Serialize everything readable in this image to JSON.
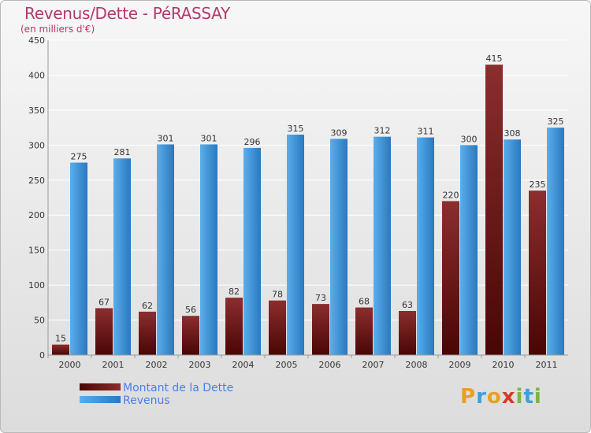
{
  "title": "Revenus/Dette - PéRASSAY",
  "subtitle": "(en milliers d'€)",
  "brand": {
    "letters": [
      {
        "ch": "P",
        "color": "#e8a020"
      },
      {
        "ch": "r",
        "color": "#3da0d8"
      },
      {
        "ch": "o",
        "color": "#e8a020"
      },
      {
        "ch": "x",
        "color": "#d63a2a"
      },
      {
        "ch": "i",
        "color": "#7ab640"
      },
      {
        "ch": "t",
        "color": "#3da0d8"
      },
      {
        "ch": "i",
        "color": "#7ab640"
      }
    ]
  },
  "colors": {
    "debt_light": "#8b2e2e",
    "debt_dark": "#4a0505",
    "revenue_light": "#5aaeea",
    "revenue_dark": "#2a78c0",
    "text": "#333333",
    "grid": "#ffffff"
  },
  "chart_data": {
    "type": "bar",
    "categories": [
      "2000",
      "2001",
      "2002",
      "2003",
      "2004",
      "2005",
      "2006",
      "2007",
      "2008",
      "2009",
      "2010",
      "2011"
    ],
    "series": [
      {
        "name": "Montant de la Dette",
        "values": [
          15,
          67,
          62,
          56,
          82,
          78,
          73,
          68,
          63,
          220,
          415,
          235
        ]
      },
      {
        "name": "Revenus",
        "values": [
          275,
          281,
          301,
          301,
          296,
          315,
          309,
          312,
          311,
          300,
          308,
          325
        ]
      }
    ],
    "title": "Revenus/Dette - PéRASSAY",
    "ylabel": "(en milliers d'€)",
    "ylim": [
      0,
      450
    ],
    "yticks": [
      0,
      50,
      100,
      150,
      200,
      250,
      300,
      350,
      400,
      450
    ],
    "grid": true,
    "legend": "bottom-left"
  }
}
